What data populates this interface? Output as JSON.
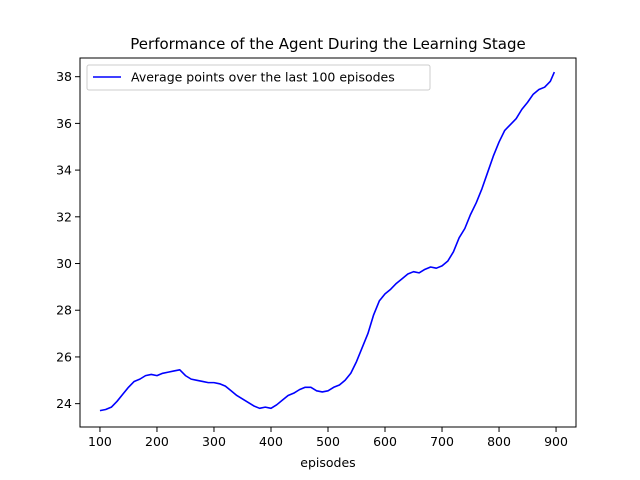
{
  "chart_data": {
    "type": "line",
    "title": "Performance of the Agent During the Learning Stage",
    "xlabel": "episodes",
    "ylabel": "",
    "xlim": [
      65,
      935
    ],
    "ylim": [
      23.0,
      38.8
    ],
    "xticks": [
      "100",
      "200",
      "300",
      "400",
      "500",
      "600",
      "700",
      "800",
      "900"
    ],
    "yticks": [
      "24",
      "26",
      "28",
      "30",
      "32",
      "34",
      "36",
      "38"
    ],
    "grid": false,
    "legend_position": "top-left",
    "colors": {
      "series": "#0000ff",
      "axes": "#000000",
      "background": "#ffffff"
    },
    "series": [
      {
        "name": "Average points over the last 100 episodes",
        "x": [
          100,
          110,
          120,
          130,
          140,
          150,
          160,
          170,
          180,
          190,
          200,
          210,
          220,
          230,
          240,
          250,
          260,
          270,
          280,
          290,
          300,
          310,
          320,
          330,
          340,
          350,
          360,
          370,
          380,
          390,
          400,
          410,
          420,
          430,
          440,
          450,
          460,
          470,
          480,
          490,
          500,
          510,
          520,
          530,
          540,
          550,
          560,
          570,
          580,
          590,
          600,
          610,
          620,
          630,
          640,
          650,
          660,
          670,
          680,
          690,
          700,
          710,
          720,
          730,
          740,
          750,
          760,
          770,
          780,
          790,
          800,
          810,
          820,
          830,
          840,
          850,
          860,
          870,
          880,
          890,
          897
        ],
        "y": [
          23.7,
          23.75,
          23.85,
          24.1,
          24.4,
          24.7,
          24.95,
          25.05,
          25.2,
          25.25,
          25.2,
          25.3,
          25.35,
          25.4,
          25.45,
          25.2,
          25.05,
          25.0,
          24.95,
          24.9,
          24.9,
          24.85,
          24.75,
          24.55,
          24.35,
          24.2,
          24.05,
          23.9,
          23.8,
          23.85,
          23.8,
          23.95,
          24.15,
          24.35,
          24.45,
          24.6,
          24.7,
          24.7,
          24.55,
          24.5,
          24.55,
          24.7,
          24.8,
          25.0,
          25.3,
          25.8,
          26.4,
          27.0,
          27.8,
          28.4,
          28.7,
          28.9,
          29.15,
          29.35,
          29.55,
          29.65,
          29.6,
          29.75,
          29.85,
          29.8,
          29.9,
          30.1,
          30.5,
          31.1,
          31.5,
          32.1,
          32.6,
          33.2,
          33.9,
          34.6,
          35.2,
          35.7,
          35.95,
          36.2,
          36.6,
          36.9,
          37.25,
          37.45,
          37.55,
          37.8,
          38.2
        ]
      }
    ]
  }
}
